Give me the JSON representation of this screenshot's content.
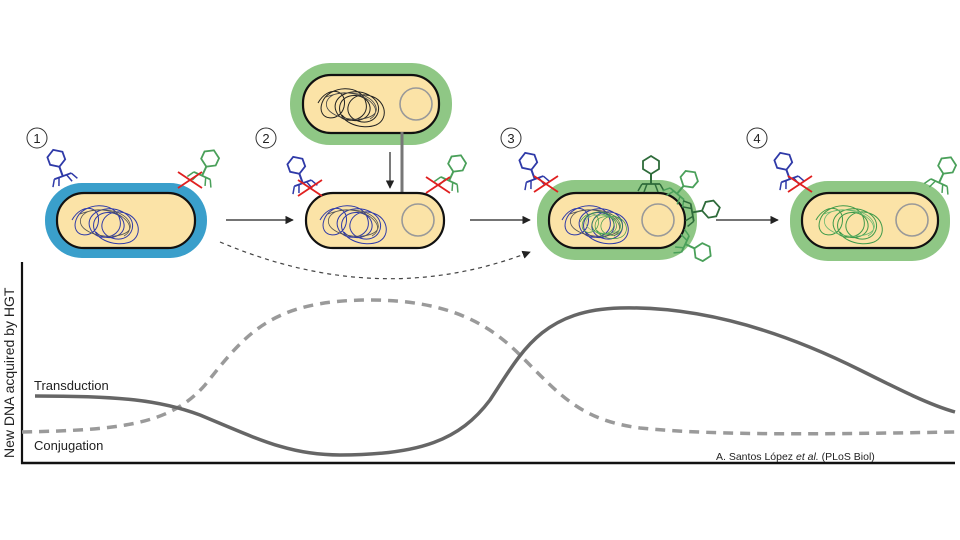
{
  "steps": [
    "1",
    "2",
    "3",
    "4"
  ],
  "curves": {
    "transduction_label": "Transduction",
    "conjugation_label": "Conjugation",
    "y_axis_label": "New DNA acquired by HGT"
  },
  "credit": {
    "author": "A. Santos López ",
    "etal": "et al.",
    "journal": " (PLoS Biol)"
  },
  "colors": {
    "blue_cell": "#3a9fcb",
    "green_cell": "#8fc785",
    "cytoplasm": "#fbe3a7",
    "curve": "#666666",
    "phage_blue": "#2f3aa8",
    "phage_green": "#4aa05a",
    "cross": "#e02020"
  }
}
